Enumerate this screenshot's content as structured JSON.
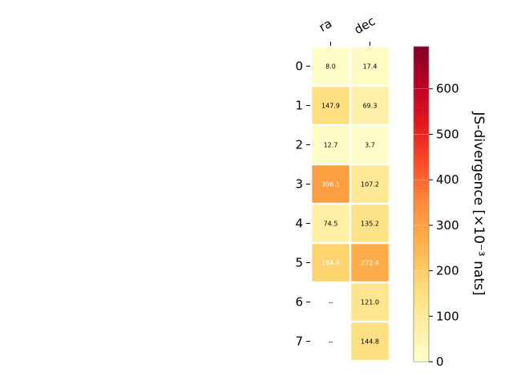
{
  "chart_data": {
    "type": "heatmap",
    "title": "",
    "columns": [
      "ra",
      "dec"
    ],
    "rows": [
      "0",
      "1",
      "2",
      "3",
      "4",
      "5",
      "6",
      "7"
    ],
    "values": [
      [
        8.0,
        17.4
      ],
      [
        147.9,
        69.3
      ],
      [
        12.7,
        3.7
      ],
      [
        306.1,
        107.2
      ],
      [
        74.5,
        135.2
      ],
      [
        184.4,
        272.4
      ],
      [
        null,
        121.0
      ],
      [
        null,
        144.8
      ]
    ],
    "cell_labels": [
      [
        "8.0",
        "17.4"
      ],
      [
        "147.9",
        "69.3"
      ],
      [
        "12.7",
        "3.7"
      ],
      [
        "306.1",
        "107.2"
      ],
      [
        "74.5",
        "135.2"
      ],
      [
        "184.4",
        "272.4"
      ],
      [
        "--",
        "121.0"
      ],
      [
        "--",
        "144.8"
      ]
    ],
    "colorbar": {
      "label": "JS-divergence [×10⁻³ nats]",
      "range": [
        0,
        693
      ],
      "ticks": [
        "0",
        "100",
        "200",
        "300",
        "400",
        "500",
        "600"
      ],
      "colormap": "YlOrRd"
    },
    "grid": false,
    "legend": "none"
  }
}
